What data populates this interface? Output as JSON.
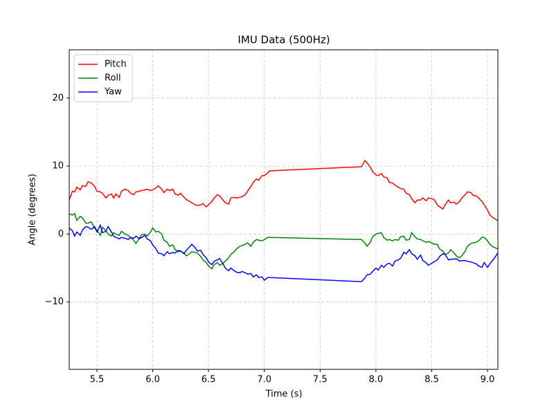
{
  "chart_data": {
    "type": "line",
    "title": "IMU Data (500Hz)",
    "x_label": "Time (s)",
    "y_label": "Angle (degrees)",
    "x": [
      5.25,
      5.28,
      5.3,
      5.32,
      5.35,
      5.37,
      5.4,
      5.42,
      5.45,
      5.48,
      5.5,
      5.53,
      5.55,
      5.58,
      5.6,
      5.63,
      5.65,
      5.67,
      5.7,
      5.72,
      5.75,
      5.78,
      5.8,
      5.83,
      5.85,
      5.88,
      5.9,
      5.93,
      5.95,
      5.98,
      6.0,
      6.03,
      6.05,
      6.08,
      6.1,
      6.13,
      6.15,
      6.18,
      6.2,
      6.23,
      6.25,
      6.28,
      6.3,
      6.33,
      6.35,
      6.38,
      6.4,
      6.43,
      6.45,
      6.48,
      6.5,
      6.53,
      6.55,
      6.58,
      6.6,
      6.63,
      6.65,
      6.68,
      6.7,
      6.73,
      6.75,
      6.78,
      6.8,
      6.83,
      6.85,
      6.88,
      6.9,
      6.93,
      6.95,
      6.98,
      7.0,
      7.03,
      7.05,
      7.87,
      7.9,
      7.92,
      7.95,
      7.97,
      8.0,
      8.02,
      8.05,
      8.07,
      8.1,
      8.12,
      8.15,
      8.17,
      8.2,
      8.22,
      8.25,
      8.27,
      8.3,
      8.32,
      8.35,
      8.37,
      8.4,
      8.42,
      8.45,
      8.47,
      8.5,
      8.52,
      8.55,
      8.57,
      8.6,
      8.62,
      8.65,
      8.67,
      8.7,
      8.72,
      8.75,
      8.77,
      8.8,
      8.82,
      8.85,
      8.87,
      8.9,
      8.92,
      8.95,
      8.97,
      9.0,
      9.02,
      9.05,
      9.08,
      9.09
    ],
    "series": [
      {
        "name": "Pitch",
        "color": "#ff0000",
        "values": [
          4.9,
          6.3,
          6.2,
          6.9,
          6.5,
          7.1,
          7.0,
          7.7,
          7.5,
          7.0,
          6.3,
          6.2,
          6.0,
          5.3,
          5.7,
          5.9,
          5.3,
          5.9,
          5.4,
          6.3,
          6.6,
          6.4,
          6.0,
          5.8,
          6.2,
          6.3,
          6.4,
          6.5,
          6.6,
          6.4,
          6.5,
          6.8,
          7.1,
          6.6,
          6.1,
          6.6,
          6.4,
          6.6,
          5.9,
          5.7,
          6.0,
          5.4,
          5.1,
          4.8,
          4.6,
          4.3,
          4.2,
          4.3,
          4.5,
          4.0,
          4.3,
          4.8,
          5.3,
          5.8,
          5.6,
          5.0,
          4.6,
          4.4,
          5.3,
          5.4,
          5.3,
          5.4,
          5.5,
          5.8,
          6.3,
          7.0,
          7.6,
          8.1,
          7.9,
          8.6,
          8.6,
          9.0,
          9.3,
          9.9,
          10.8,
          10.5,
          9.8,
          9.2,
          8.7,
          8.6,
          8.9,
          8.4,
          8.3,
          7.6,
          7.5,
          7.2,
          6.9,
          6.7,
          6.6,
          6.0,
          5.8,
          5.2,
          4.6,
          5.0,
          5.0,
          5.3,
          4.9,
          5.3,
          5.2,
          5.1,
          4.3,
          4.0,
          3.7,
          4.3,
          5.0,
          4.6,
          4.7,
          4.4,
          4.8,
          5.3,
          5.8,
          6.2,
          6.1,
          5.7,
          5.6,
          5.3,
          4.8,
          4.3,
          3.5,
          2.8,
          2.4,
          2.1,
          2.0
        ]
      },
      {
        "name": "Roll",
        "color": "#008000",
        "values": [
          3.0,
          2.8,
          3.0,
          2.0,
          2.6,
          2.4,
          1.6,
          1.6,
          1.8,
          0.8,
          0.6,
          -0.2,
          1.0,
          0.5,
          0.0,
          -0.3,
          0.2,
          0.0,
          -0.2,
          0.4,
          0.0,
          -0.2,
          -0.5,
          -0.9,
          -1.4,
          -0.6,
          -0.1,
          0.0,
          -0.3,
          0.3,
          0.9,
          0.3,
          0.4,
          0.0,
          -0.9,
          -1.2,
          -1.8,
          -1.6,
          -2.3,
          -2.6,
          -2.5,
          -2.8,
          -3.2,
          -2.9,
          -2.6,
          -2.7,
          -2.8,
          -3.3,
          -3.8,
          -4.2,
          -4.7,
          -5.1,
          -4.5,
          -4.2,
          -4.6,
          -4.3,
          -4.0,
          -3.5,
          -3.0,
          -2.6,
          -2.2,
          -1.8,
          -1.7,
          -1.5,
          -1.3,
          -1.8,
          -1.2,
          -0.8,
          -0.9,
          -1.0,
          -0.8,
          -0.5,
          -0.5,
          -0.8,
          -1.3,
          -1.8,
          -1.2,
          -0.4,
          0.0,
          0.1,
          0.2,
          -0.5,
          -0.9,
          -0.8,
          -1.0,
          -0.8,
          -0.9,
          -0.4,
          -0.3,
          -0.9,
          -0.8,
          0.2,
          -0.4,
          -0.7,
          -0.8,
          -1.0,
          -1.2,
          -1.1,
          -1.3,
          -1.5,
          -1.5,
          -2.2,
          -2.5,
          -3.0,
          -2.8,
          -2.3,
          -2.8,
          -3.2,
          -3.5,
          -3.2,
          -2.5,
          -1.8,
          -1.4,
          -1.3,
          -1.2,
          -1.0,
          -0.5,
          -0.5,
          -1.0,
          -1.5,
          -1.9,
          -2.1,
          -2.2
        ]
      },
      {
        "name": "Yaw",
        "color": "#0000ff",
        "values": [
          0.9,
          0.5,
          -0.3,
          0.3,
          -0.2,
          0.6,
          1.1,
          1.0,
          0.7,
          1.1,
          0.3,
          1.3,
          0.2,
          0.4,
          1.1,
          0.3,
          -0.3,
          -0.5,
          -0.7,
          -0.5,
          -0.6,
          -0.8,
          -0.5,
          -0.6,
          -0.3,
          -0.7,
          -0.5,
          -0.2,
          -0.7,
          -1.0,
          -1.6,
          -2.2,
          -2.8,
          -2.9,
          -3.2,
          -2.6,
          -2.9,
          -2.7,
          -2.8,
          -2.4,
          -2.5,
          -2.9,
          -2.4,
          -1.9,
          -1.5,
          -2.0,
          -2.5,
          -2.4,
          -3.0,
          -3.5,
          -4.1,
          -4.5,
          -4.0,
          -3.8,
          -3.6,
          -4.4,
          -5.0,
          -5.4,
          -5.0,
          -5.4,
          -5.6,
          -5.7,
          -5.5,
          -5.7,
          -5.9,
          -5.8,
          -6.3,
          -6.0,
          -6.4,
          -6.3,
          -6.8,
          -6.4,
          -6.4,
          -7.0,
          -6.5,
          -6.0,
          -5.9,
          -5.5,
          -5.0,
          -5.3,
          -4.6,
          -4.9,
          -4.4,
          -4.3,
          -4.7,
          -4.0,
          -3.8,
          -3.6,
          -2.7,
          -2.9,
          -2.3,
          -2.9,
          -3.2,
          -3.7,
          -3.1,
          -3.9,
          -4.2,
          -4.6,
          -4.3,
          -4.1,
          -3.8,
          -3.3,
          -2.9,
          -3.0,
          -3.8,
          -3.7,
          -3.7,
          -3.6,
          -4.0,
          -3.9,
          -3.9,
          -4.0,
          -4.1,
          -4.2,
          -4.4,
          -4.7,
          -4.9,
          -4.2,
          -4.9,
          -4.4,
          -3.8,
          -3.1,
          -2.8
        ]
      }
    ],
    "xlim": [
      5.252,
      9.093
    ],
    "ylim": [
      -19.9,
      27.1
    ],
    "xticks": [
      5.5,
      {
        "value": 6.0,
        "label": "6.0"
      },
      6.5,
      {
        "value": 7.0,
        "label": "7.0"
      },
      7.5,
      {
        "value": 8.0,
        "label": "8.0"
      },
      8.5,
      {
        "value": 9.0,
        "label": "9.0"
      }
    ],
    "yticks": [
      {
        "value": -10,
        "label": "−10"
      },
      0,
      10,
      20
    ],
    "grid": true,
    "legend": "upper-left"
  }
}
